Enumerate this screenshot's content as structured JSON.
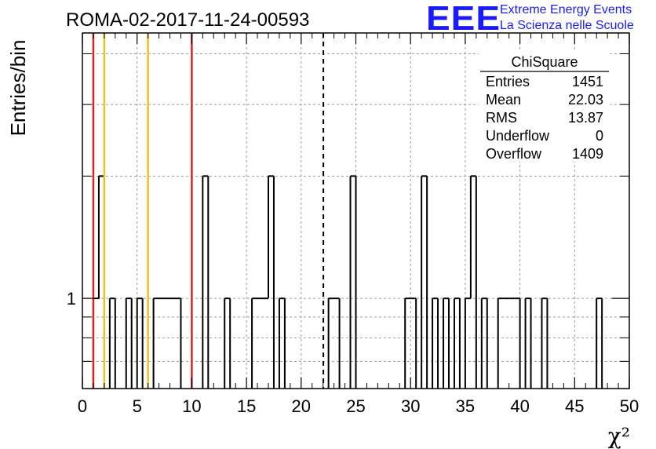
{
  "title": "ROMA-02-2017-11-24-00593",
  "logo": {
    "mark": "EEE",
    "line1": "Extreme Energy Events",
    "line2": "La Scienza nelle Scuole",
    "color": "#1a1aff"
  },
  "stats_box": {
    "name": "ChiSquare",
    "rows": [
      {
        "label": "Entries",
        "value": "1451"
      },
      {
        "label": "Mean",
        "value": "22.03"
      },
      {
        "label": "RMS",
        "value": "13.87"
      },
      {
        "label": "Underflow",
        "value": "0"
      },
      {
        "label": "Overflow",
        "value": "1409"
      }
    ]
  },
  "chart_data": {
    "type": "histogram",
    "ylabel": "Entries/bin",
    "xlabel": "χ²",
    "xlim": [
      0,
      50
    ],
    "y_scale": "log",
    "ylim": [
      0.6,
      4.5
    ],
    "x_tick_labels": [
      "0",
      "5",
      "10",
      "15",
      "20",
      "25",
      "30",
      "35",
      "40",
      "45",
      "50"
    ],
    "y_tick_labels": [
      {
        "value": 1,
        "label": "1"
      }
    ],
    "grid": true,
    "bin_width": 0.5,
    "bins": [
      {
        "x": 1.0,
        "count": 1
      },
      {
        "x": 1.5,
        "count": 2
      },
      {
        "x": 2.5,
        "count": 1
      },
      {
        "x": 4.0,
        "count": 1
      },
      {
        "x": 5.0,
        "count": 1
      },
      {
        "x": 6.5,
        "count": 1
      },
      {
        "x": 7.0,
        "count": 1
      },
      {
        "x": 7.5,
        "count": 1
      },
      {
        "x": 8.0,
        "count": 1
      },
      {
        "x": 8.5,
        "count": 1
      },
      {
        "x": 11.0,
        "count": 2
      },
      {
        "x": 13.0,
        "count": 1
      },
      {
        "x": 15.5,
        "count": 1
      },
      {
        "x": 16.0,
        "count": 1
      },
      {
        "x": 16.5,
        "count": 1
      },
      {
        "x": 17.0,
        "count": 2
      },
      {
        "x": 18.0,
        "count": 1
      },
      {
        "x": 22.5,
        "count": 1
      },
      {
        "x": 23.0,
        "count": 1
      },
      {
        "x": 24.5,
        "count": 2
      },
      {
        "x": 29.5,
        "count": 1
      },
      {
        "x": 30.0,
        "count": 1
      },
      {
        "x": 31.0,
        "count": 2
      },
      {
        "x": 32.0,
        "count": 1
      },
      {
        "x": 33.0,
        "count": 1
      },
      {
        "x": 34.0,
        "count": 1
      },
      {
        "x": 35.0,
        "count": 1
      },
      {
        "x": 35.5,
        "count": 2
      },
      {
        "x": 36.5,
        "count": 1
      },
      {
        "x": 38.0,
        "count": 1
      },
      {
        "x": 38.5,
        "count": 1
      },
      {
        "x": 39.0,
        "count": 1
      },
      {
        "x": 39.5,
        "count": 1
      },
      {
        "x": 40.5,
        "count": 1
      },
      {
        "x": 42.0,
        "count": 1
      },
      {
        "x": 47.0,
        "count": 1
      }
    ],
    "vertical_lines": [
      {
        "x": 1.0,
        "color": "#dd2222",
        "style": "solid"
      },
      {
        "x": 2.0,
        "color": "#f0c020",
        "style": "solid"
      },
      {
        "x": 6.0,
        "color": "#f0c020",
        "style": "solid"
      },
      {
        "x": 10.0,
        "color": "#dd2222",
        "style": "solid"
      },
      {
        "x": 22.03,
        "color": "#000000",
        "style": "dashed"
      }
    ]
  }
}
